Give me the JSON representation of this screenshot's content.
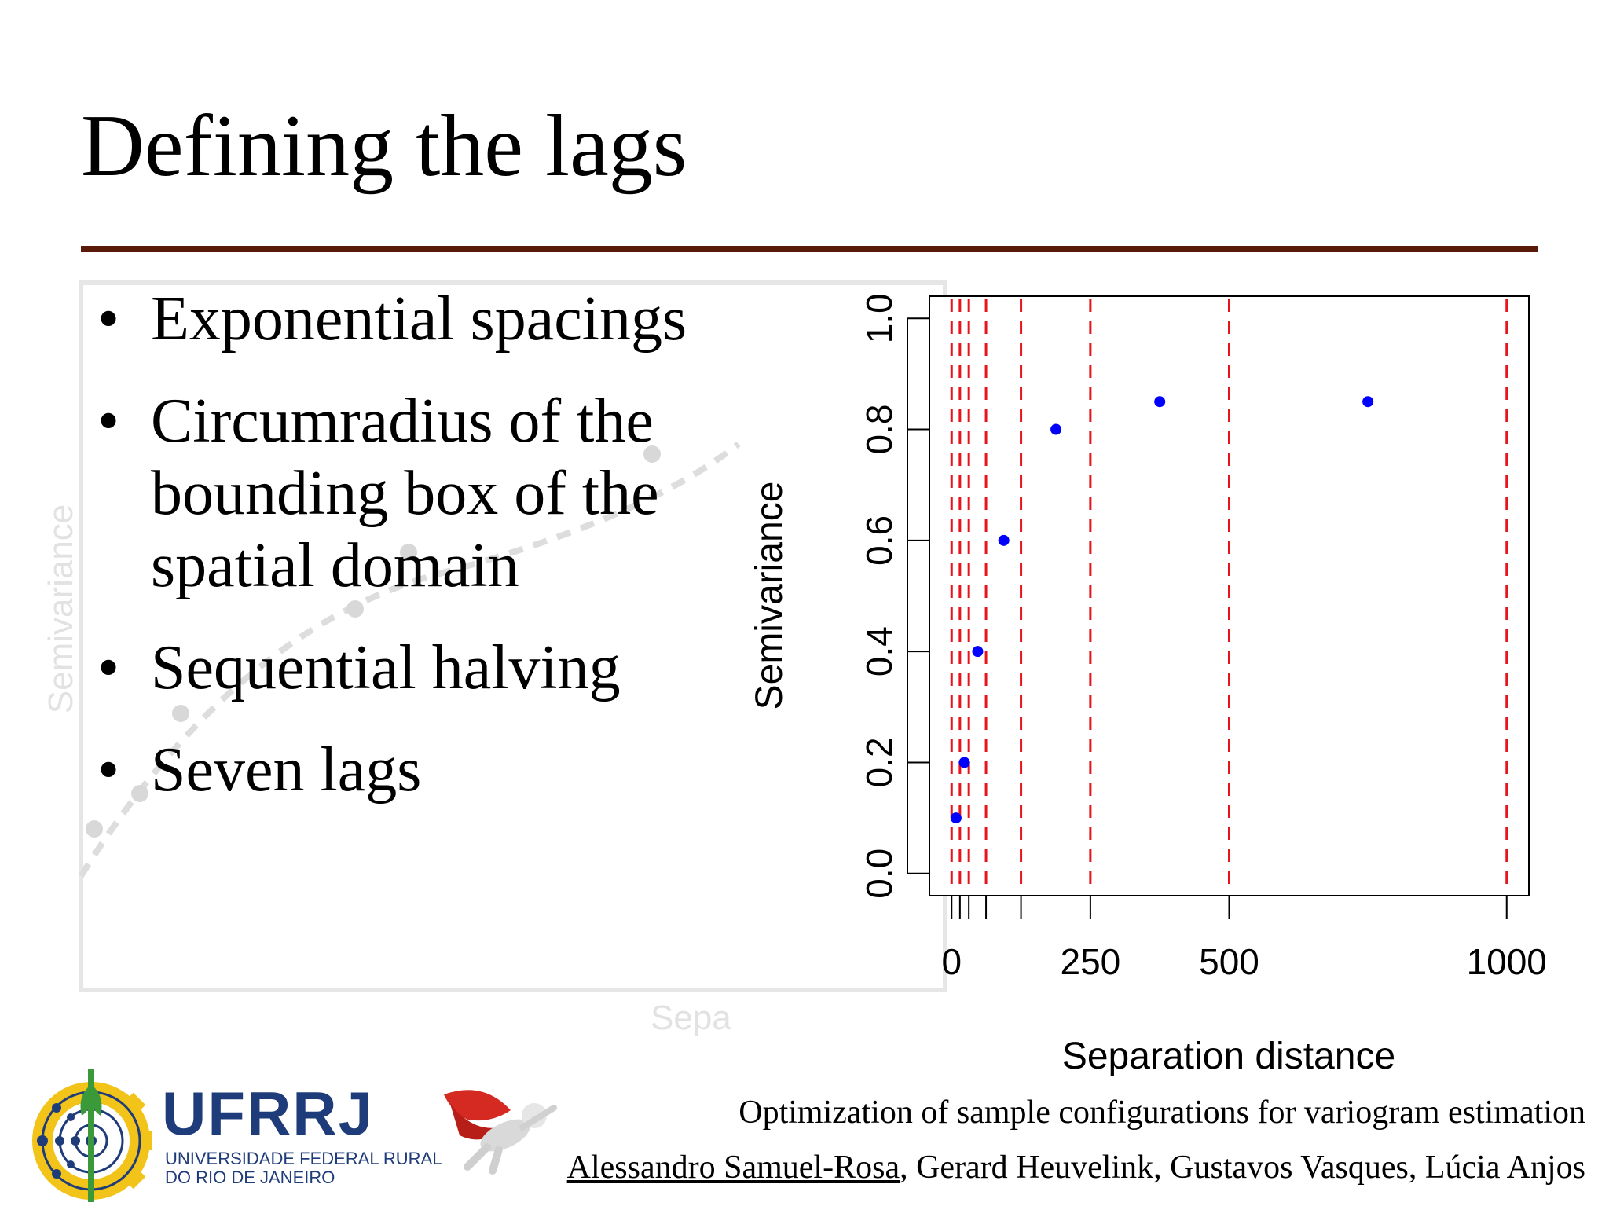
{
  "slide": {
    "title": "Defining the lags",
    "bullets": [
      "Exponential spacings",
      "Circumradius of the bounding box of the spatial domain",
      "Sequential halving",
      "Seven lags"
    ]
  },
  "background_chart": {
    "ylabel": "Semivariance",
    "xlabel_partial": "Sepa"
  },
  "colors": {
    "rule": "#5a1a0a",
    "lag_lines": "#e8141c",
    "points": "#0000ff",
    "logo_blue": "#1f3c7a",
    "logo_yellow": "#f2c318",
    "logo_green": "#3a9a3a"
  },
  "chart_data": {
    "type": "scatter",
    "title": "",
    "xlabel": "Separation distance",
    "ylabel": "Semivariance",
    "xlim": [
      -40,
      1040
    ],
    "ylim": [
      -0.04,
      1.04
    ],
    "xticks": [
      0,
      250,
      500,
      1000
    ],
    "xtick_labels": [
      "0",
      "250",
      "500",
      "1000"
    ],
    "yticks": [
      0.0,
      0.2,
      0.4,
      0.6,
      0.8,
      1.0
    ],
    "ytick_labels": [
      "0.0",
      "0.2",
      "0.4",
      "0.6",
      "0.8",
      "1.0"
    ],
    "minor_xticks": [
      15,
      31,
      62,
      125
    ],
    "lag_lines": [
      0,
      15,
      31,
      62,
      125,
      250,
      500,
      1000
    ],
    "grid": false,
    "legend": "none",
    "points": [
      {
        "x": 8,
        "y": 0.1
      },
      {
        "x": 23,
        "y": 0.2
      },
      {
        "x": 47,
        "y": 0.4
      },
      {
        "x": 94,
        "y": 0.6
      },
      {
        "x": 188,
        "y": 0.8
      },
      {
        "x": 375,
        "y": 0.85
      },
      {
        "x": 750,
        "y": 0.85
      }
    ]
  },
  "footer": {
    "citation": "Optimization of sample configurations for variogram estimation",
    "author_first": "Alessandro Samuel-Rosa",
    "authors_rest": ", Gerard Heuvelink, Gustavos Vasques, Lúcia Anjos"
  },
  "logo": {
    "name": "UFRRJ",
    "line1": "UNIVERSIDADE FEDERAL RURAL",
    "line2": "DO RIO DE JANEIRO"
  }
}
